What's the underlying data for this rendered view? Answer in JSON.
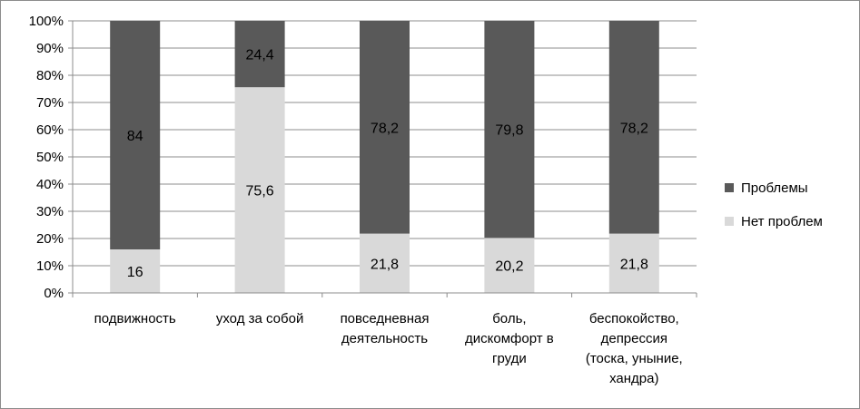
{
  "chart_data": {
    "type": "bar",
    "stacked": true,
    "percent": true,
    "categories": [
      [
        "подвижность"
      ],
      [
        "уход за собой"
      ],
      [
        "повседневная",
        "деятельность"
      ],
      [
        "боль,",
        "дискомфорт в",
        "груди"
      ],
      [
        "беспокойство,",
        "депрессия",
        "(тоска, уныние,",
        "хандра)"
      ]
    ],
    "series": [
      {
        "name": "Нет проблем",
        "color": "#d9d9d9",
        "values": [
          16,
          75.6,
          21.8,
          20.2,
          21.8
        ],
        "labels": [
          "16",
          "75,6",
          "21,8",
          "20,2",
          "21,8"
        ]
      },
      {
        "name": "Проблемы",
        "color": "#595959",
        "values": [
          84,
          24.4,
          78.2,
          79.8,
          78.2
        ],
        "labels": [
          "84",
          "24,4",
          "78,2",
          "79,8",
          "78,2"
        ]
      }
    ],
    "ylim": [
      0,
      100
    ],
    "yticks": [
      "0%",
      "10%",
      "20%",
      "30%",
      "40%",
      "50%",
      "60%",
      "70%",
      "80%",
      "90%",
      "100%"
    ],
    "grid": true,
    "legend": "right"
  }
}
